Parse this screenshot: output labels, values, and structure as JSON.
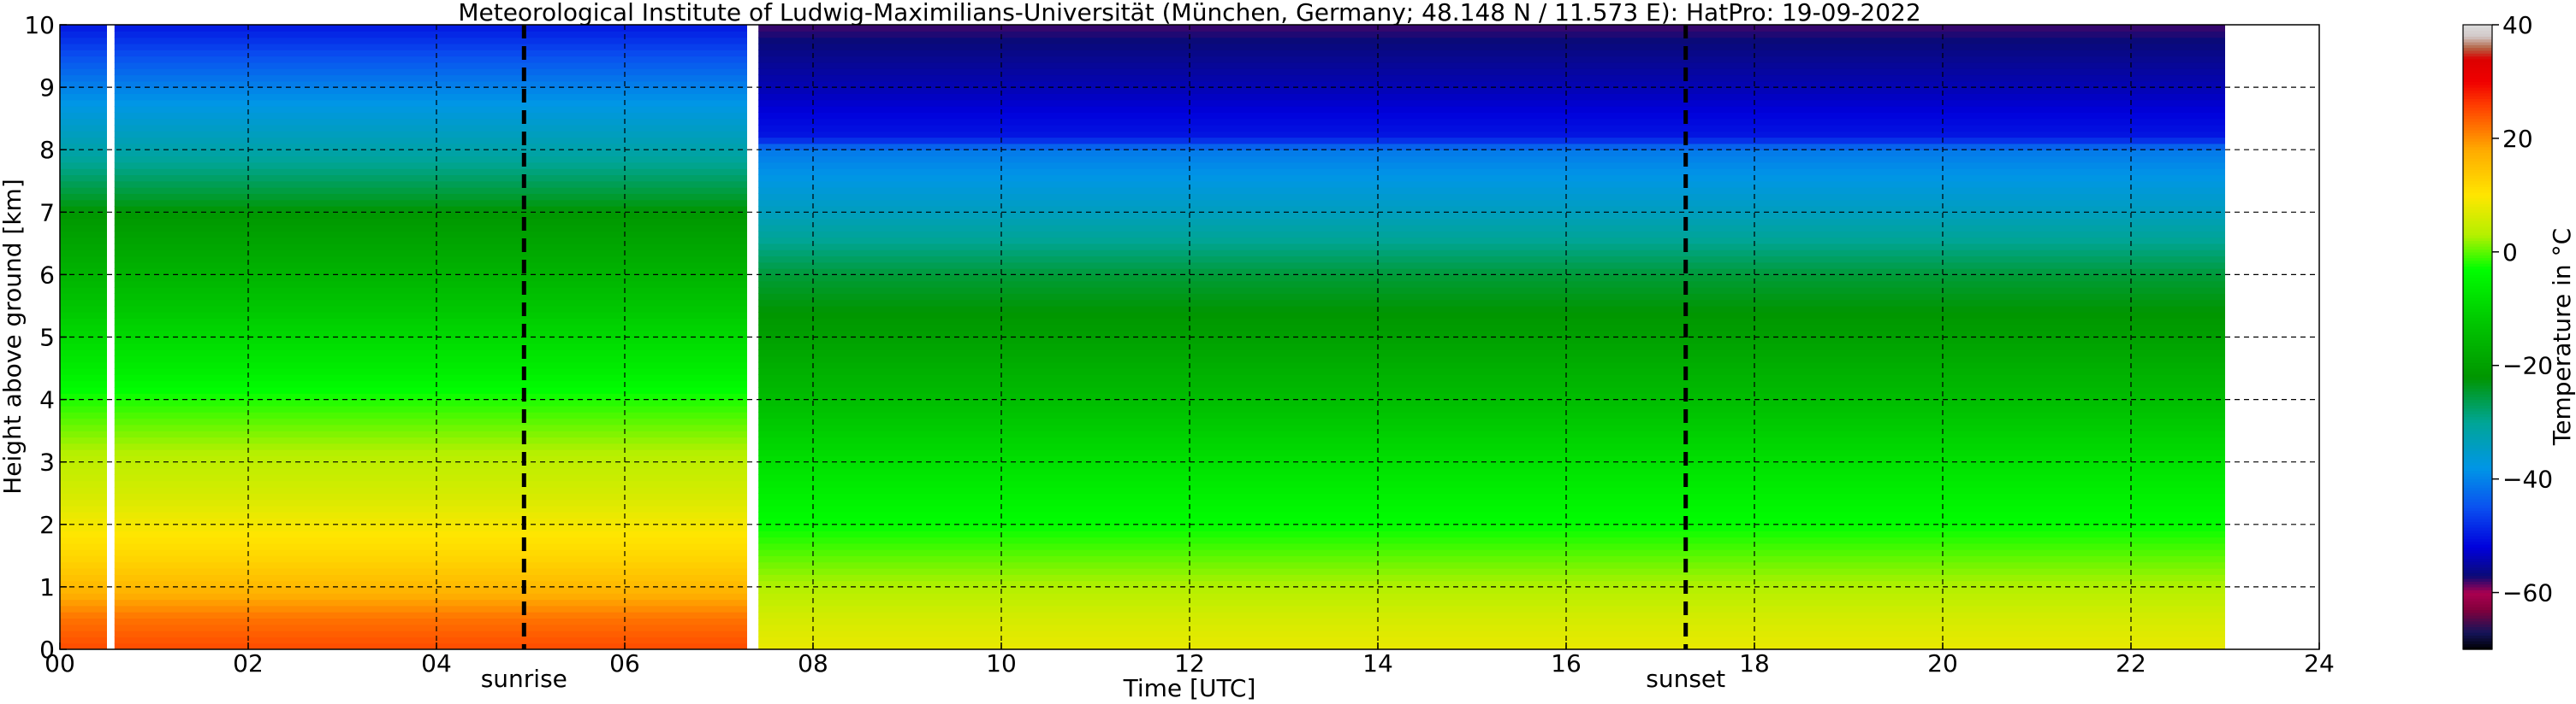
{
  "chart_data": {
    "type": "heatmap",
    "title": "Meteorological Institute of Ludwig-Maximilians-Universität (München, Germany; 48.148 N / 11.573 E):    HatPro: 19-09-2022",
    "xlabel": "Time [UTC]",
    "ylabel": "Height above ground [km]",
    "xlim": [
      0,
      24
    ],
    "ylim": [
      0,
      10
    ],
    "x_ticks": [
      "00",
      "02",
      "04",
      "06",
      "08",
      "10",
      "12",
      "14",
      "16",
      "18",
      "20",
      "22",
      "24"
    ],
    "y_ticks": [
      "0",
      "1",
      "2",
      "3",
      "4",
      "5",
      "6",
      "7",
      "8",
      "9",
      "10"
    ],
    "grid": true,
    "data_gaps_hours": [
      [
        0.5,
        0.58
      ],
      [
        7.3,
        7.42
      ]
    ],
    "data_end_hour": 23.0,
    "events": [
      {
        "label": "sunrise",
        "time_hours": 4.93
      },
      {
        "label": "sunset",
        "time_hours": 17.27
      }
    ],
    "profiles": [
      {
        "period": "00-07.3 UTC",
        "heights_km": [
          0,
          0.5,
          1,
          1.5,
          2,
          2.5,
          3,
          3.5,
          4,
          4.5,
          5,
          6,
          7,
          8,
          9,
          10
        ],
        "temperature_c": [
          25,
          22,
          16,
          12,
          9,
          6,
          4,
          1,
          -2,
          -6,
          -9,
          -16,
          -22,
          -32,
          -40,
          -50
        ]
      },
      {
        "period": "07.4-23 UTC",
        "heights_km": [
          0,
          0.5,
          1,
          1.5,
          2,
          3,
          4,
          5,
          6,
          7,
          8,
          8.2,
          9,
          10
        ],
        "temperature_c": [
          8,
          6,
          3,
          0,
          -3,
          -8,
          -14,
          -20,
          -25,
          -34,
          -41,
          -50,
          -54,
          -58
        ]
      }
    ],
    "colorbar": {
      "label": "Temperature in °C",
      "range": [
        -70,
        40
      ],
      "ticks": [
        "40",
        "20",
        "0",
        "−20",
        "−40",
        "−60"
      ]
    }
  }
}
